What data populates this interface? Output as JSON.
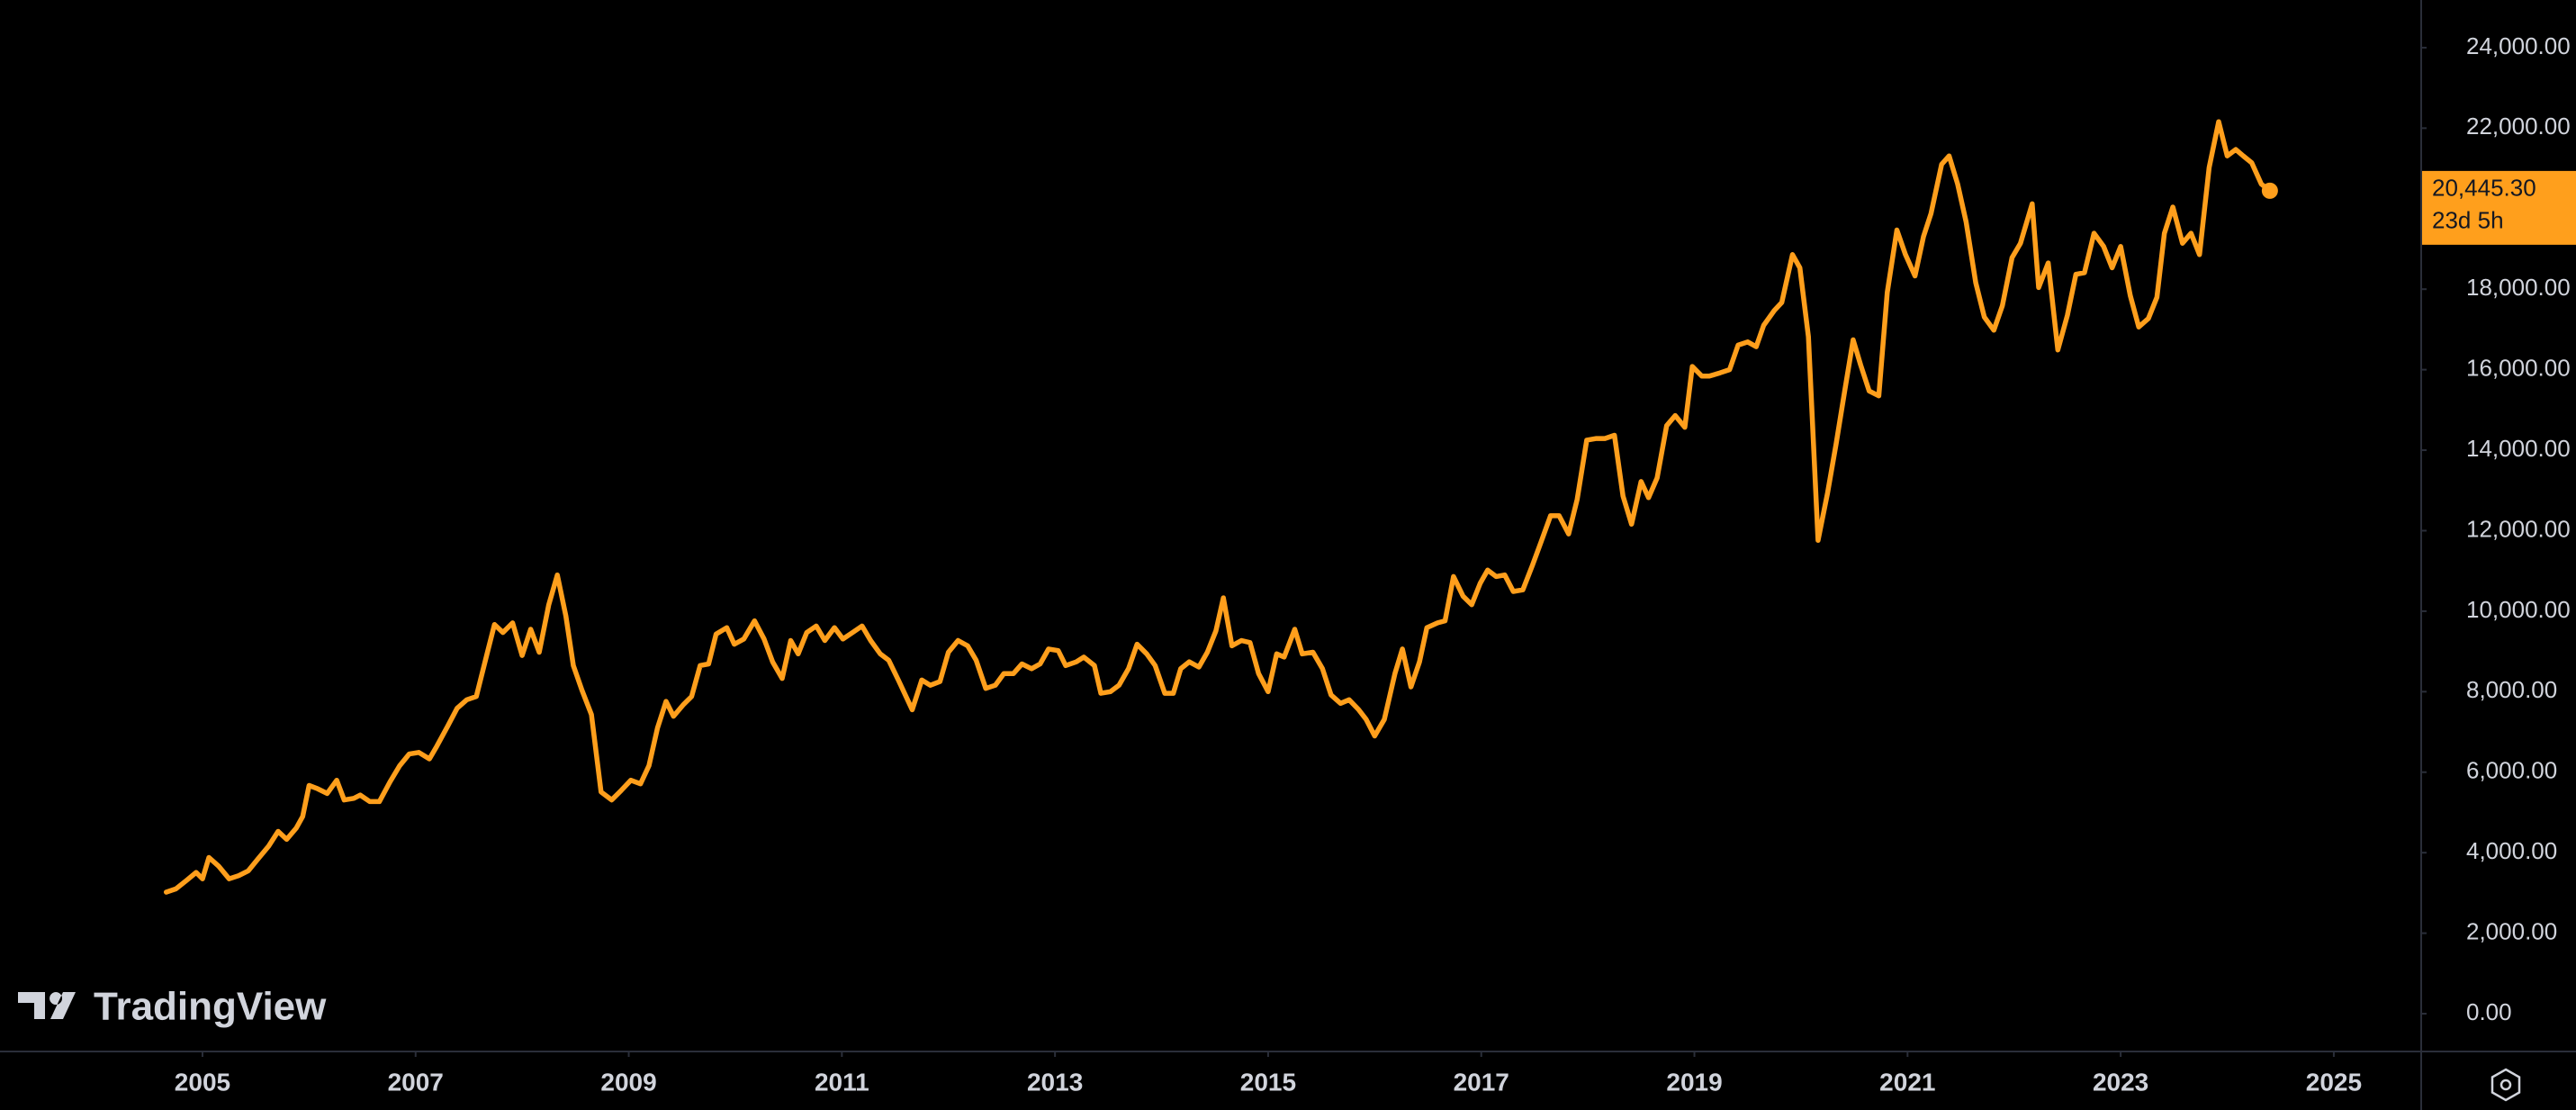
{
  "chart_data": {
    "type": "line",
    "color": "#ff9f1c",
    "grid": false,
    "x": [
      2004.66,
      2004.75,
      2004.85,
      2004.94,
      2005.0,
      2005.06,
      2005.15,
      2005.25,
      2005.34,
      2005.43,
      2005.52,
      2005.62,
      2005.71,
      2005.79,
      2005.88,
      2005.94,
      2006.0,
      2006.08,
      2006.17,
      2006.26,
      2006.33,
      2006.42,
      2006.48,
      2006.57,
      2006.66,
      2006.76,
      2006.85,
      2006.94,
      2007.03,
      2007.13,
      2007.2,
      2007.3,
      2007.39,
      2007.48,
      2007.57,
      2007.67,
      2007.74,
      2007.82,
      2007.91,
      2008.0,
      2008.08,
      2008.16,
      2008.25,
      2008.33,
      2008.41,
      2008.48,
      2008.56,
      2008.65,
      2008.74,
      2008.84,
      2008.93,
      2009.02,
      2009.11,
      2009.19,
      2009.27,
      2009.35,
      2009.42,
      2009.51,
      2009.59,
      2009.67,
      2009.75,
      2009.82,
      2009.92,
      2009.99,
      2010.08,
      2010.18,
      2010.27,
      2010.35,
      2010.44,
      2010.52,
      2010.59,
      2010.67,
      2010.76,
      2010.84,
      2010.93,
      2011.01,
      2011.1,
      2011.19,
      2011.27,
      2011.36,
      2011.44,
      2011.53,
      2011.66,
      2011.75,
      2011.83,
      2011.92,
      2012.0,
      2012.09,
      2012.18,
      2012.26,
      2012.35,
      2012.44,
      2012.52,
      2012.61,
      2012.69,
      2012.78,
      2012.86,
      2012.94,
      2013.03,
      2013.1,
      2013.2,
      2013.27,
      2013.37,
      2013.43,
      2013.52,
      2013.6,
      2013.69,
      2013.77,
      2013.86,
      2013.94,
      2014.03,
      2014.11,
      2014.18,
      2014.26,
      2014.35,
      2014.43,
      2014.51,
      2014.58,
      2014.66,
      2014.75,
      2014.83,
      2014.91,
      2015.0,
      2015.08,
      2015.15,
      2015.25,
      2015.32,
      2015.42,
      2015.51,
      2015.59,
      2015.68,
      2015.76,
      2015.85,
      2015.92,
      2016.0,
      2016.09,
      2016.19,
      2016.26,
      2016.34,
      2016.42,
      2016.49,
      2016.59,
      2016.66,
      2016.74,
      2016.83,
      2016.91,
      2016.99,
      2017.06,
      2017.14,
      2017.22,
      2017.3,
      2017.39,
      2017.48,
      2017.56,
      2017.65,
      2017.73,
      2017.82,
      2017.9,
      2017.99,
      2018.08,
      2018.16,
      2018.25,
      2018.33,
      2018.41,
      2018.5,
      2018.57,
      2018.65,
      2018.74,
      2018.82,
      2018.91,
      2018.98,
      2019.07,
      2019.14,
      2019.24,
      2019.33,
      2019.41,
      2019.5,
      2019.58,
      2019.65,
      2019.75,
      2019.82,
      2019.92,
      2019.99,
      2020.07,
      2020.16,
      2020.25,
      2020.33,
      2020.41,
      2020.49,
      2020.56,
      2020.64,
      2020.73,
      2020.81,
      2020.9,
      2020.98,
      2021.07,
      2021.15,
      2021.22,
      2021.32,
      2021.39,
      2021.47,
      2021.55,
      2021.64,
      2021.72,
      2021.81,
      2021.89,
      2021.98,
      2022.06,
      2022.17,
      2022.23,
      2022.32,
      2022.41,
      2022.5,
      2022.58,
      2022.66,
      2022.75,
      2022.84,
      2022.92,
      2023.0,
      2023.09,
      2023.17,
      2023.26,
      2023.34,
      2023.41,
      2023.49,
      2023.58,
      2023.66,
      2023.74,
      2023.83,
      2023.92,
      2024.0,
      2024.08,
      2024.15,
      2024.23,
      2024.32,
      2024.4
    ],
    "values": [
      3020,
      3100,
      3310,
      3510,
      3350,
      3880,
      3670,
      3350,
      3430,
      3550,
      3840,
      4160,
      4530,
      4330,
      4610,
      4900,
      5670,
      5590,
      5470,
      5800,
      5310,
      5350,
      5430,
      5270,
      5270,
      5760,
      6160,
      6450,
      6490,
      6330,
      6650,
      7140,
      7590,
      7800,
      7880,
      8940,
      9670,
      9470,
      9710,
      8900,
      9550,
      8980,
      10160,
      10900,
      9880,
      8650,
      8040,
      7430,
      5510,
      5310,
      5550,
      5800,
      5710,
      6160,
      7100,
      7760,
      7390,
      7670,
      7880,
      8650,
      8690,
      9430,
      9590,
      9180,
      9310,
      9760,
      9310,
      8740,
      8330,
      9270,
      8940,
      9470,
      9630,
      9270,
      9590,
      9310,
      9470,
      9630,
      9270,
      8940,
      8780,
      8290,
      7550,
      8290,
      8160,
      8250,
      8980,
      9270,
      9140,
      8780,
      8080,
      8160,
      8450,
      8450,
      8690,
      8570,
      8690,
      9060,
      9020,
      8650,
      8740,
      8860,
      8650,
      7960,
      8000,
      8160,
      8570,
      9180,
      8940,
      8650,
      7960,
      7960,
      8570,
      8740,
      8610,
      8980,
      9510,
      10330,
      9140,
      9270,
      9220,
      8450,
      8000,
      8940,
      8860,
      9550,
      8940,
      8980,
      8570,
      7920,
      7710,
      7800,
      7550,
      7310,
      6900,
      7310,
      8450,
      9060,
      8120,
      8740,
      9590,
      9710,
      9760,
      10860,
      10370,
      10160,
      10690,
      11020,
      10860,
      10900,
      10490,
      10530,
      11140,
      11710,
      12370,
      12370,
      11920,
      12780,
      14250,
      14290,
      14290,
      14370,
      12860,
      12160,
      13220,
      12820,
      13310,
      14610,
      14860,
      14570,
      16080,
      15840,
      15840,
      15920,
      16000,
      16610,
      16690,
      16570,
      17100,
      17470,
      17670,
      18860,
      18530,
      16820,
      11760,
      12940,
      14160,
      15470,
      16740,
      16120,
      15470,
      15350,
      17920,
      19470,
      18860,
      18330,
      19310,
      19880,
      21100,
      21310,
      20610,
      19670,
      18160,
      17310,
      16980,
      17590,
      18780,
      19140,
      20120,
      18040,
      18650,
      16490,
      17350,
      18370,
      18410,
      19390,
      19060,
      18530,
      19060,
      17840,
      17060,
      17270,
      17800,
      19390,
      20040,
      19140,
      19390,
      18860,
      21020,
      22160,
      21310,
      21470,
      21310,
      21140,
      20610,
      20445.3
    ],
    "last_price_label": "20,445.30",
    "countdown": "23d 5h",
    "xlim": [
      2003.1,
      2025.82
    ],
    "xticks": [
      2005,
      2007,
      2009,
      2011,
      2013,
      2015,
      2017,
      2019,
      2021,
      2023,
      2025
    ],
    "ylim": [
      -939,
      25184
    ],
    "yticks": [
      {
        "value": 0,
        "label": "0.00"
      },
      {
        "value": 2000,
        "label": "2,000.00"
      },
      {
        "value": 4000,
        "label": "4,000.00"
      },
      {
        "value": 6000,
        "label": "6,000.00"
      },
      {
        "value": 8000,
        "label": "8,000.00"
      },
      {
        "value": 10000,
        "label": "10,000.00"
      },
      {
        "value": 12000,
        "label": "12,000.00"
      },
      {
        "value": 14000,
        "label": "14,000.00"
      },
      {
        "value": 16000,
        "label": "16,000.00"
      },
      {
        "value": 18000,
        "label": "18,000.00"
      },
      {
        "value": 22000,
        "label": "22,000.00"
      },
      {
        "value": 24000,
        "label": "24,000.00"
      }
    ],
    "watermark": "TradingView"
  }
}
